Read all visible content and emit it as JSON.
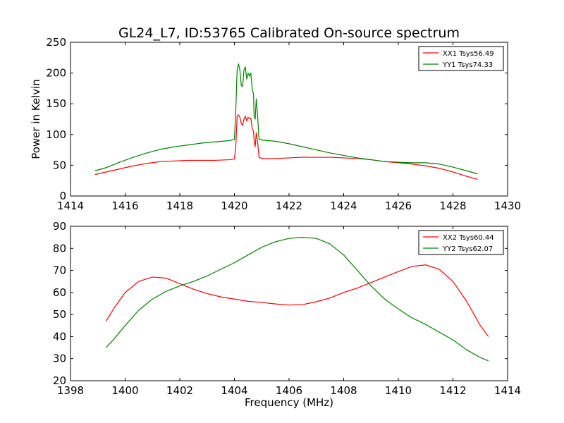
{
  "figure": {
    "title": "GL24_L7, ID:53765 Calibrated On-source spectrum"
  },
  "chart_data": [
    {
      "type": "line",
      "title": "GL24_L7, ID:53765 Calibrated On-source spectrum",
      "xlabel": "",
      "ylabel": "Power in Kelvin",
      "xlim": [
        1414,
        1430
      ],
      "ylim": [
        0,
        250
      ],
      "xticks": [
        1414,
        1416,
        1418,
        1420,
        1422,
        1424,
        1426,
        1428,
        1430
      ],
      "yticks": [
        0,
        50,
        100,
        150,
        200,
        250
      ],
      "grid": false,
      "legend_position": "top-right",
      "series": [
        {
          "name": "XX1 Tsys56.49",
          "color": "#ff0000",
          "points": [
            [
              1414.9,
              35
            ],
            [
              1415.3,
              39
            ],
            [
              1415.8,
              44
            ],
            [
              1416.3,
              49
            ],
            [
              1416.8,
              53
            ],
            [
              1417.3,
              56
            ],
            [
              1417.8,
              57
            ],
            [
              1418.3,
              58
            ],
            [
              1418.8,
              58
            ],
            [
              1419.3,
              58
            ],
            [
              1419.8,
              59
            ],
            [
              1420.0,
              60
            ],
            [
              1420.05,
              80
            ],
            [
              1420.1,
              130
            ],
            [
              1420.15,
              132
            ],
            [
              1420.2,
              128
            ],
            [
              1420.25,
              118
            ],
            [
              1420.3,
              115
            ],
            [
              1420.35,
              125
            ],
            [
              1420.4,
              130
            ],
            [
              1420.45,
              122
            ],
            [
              1420.5,
              128
            ],
            [
              1420.55,
              126
            ],
            [
              1420.6,
              127
            ],
            [
              1420.65,
              110
            ],
            [
              1420.7,
              105
            ],
            [
              1420.72,
              90
            ],
            [
              1420.76,
              80
            ],
            [
              1420.8,
              103
            ],
            [
              1420.85,
              88
            ],
            [
              1420.9,
              63
            ],
            [
              1421.0,
              61
            ],
            [
              1421.5,
              61
            ],
            [
              1422.0,
              62
            ],
            [
              1422.5,
              63
            ],
            [
              1423.0,
              63
            ],
            [
              1423.5,
              63
            ],
            [
              1424.0,
              62
            ],
            [
              1424.5,
              61
            ],
            [
              1425.0,
              59
            ],
            [
              1425.5,
              56
            ],
            [
              1426.0,
              54
            ],
            [
              1426.5,
              52
            ],
            [
              1427.0,
              49
            ],
            [
              1427.5,
              45
            ],
            [
              1428.0,
              39
            ],
            [
              1428.5,
              32
            ],
            [
              1428.9,
              27
            ]
          ]
        },
        {
          "name": "YY1 Tsys74.33",
          "color": "#008000",
          "points": [
            [
              1414.9,
              41
            ],
            [
              1415.3,
              46
            ],
            [
              1415.8,
              55
            ],
            [
              1416.3,
              63
            ],
            [
              1416.8,
              70
            ],
            [
              1417.3,
              76
            ],
            [
              1417.8,
              80
            ],
            [
              1418.3,
              83
            ],
            [
              1418.8,
              86
            ],
            [
              1419.3,
              88
            ],
            [
              1419.8,
              90
            ],
            [
              1420.0,
              92
            ],
            [
              1420.05,
              140
            ],
            [
              1420.1,
              205
            ],
            [
              1420.15,
              215
            ],
            [
              1420.2,
              205
            ],
            [
              1420.25,
              180
            ],
            [
              1420.3,
              178
            ],
            [
              1420.35,
              205
            ],
            [
              1420.4,
              210
            ],
            [
              1420.45,
              190
            ],
            [
              1420.5,
              200
            ],
            [
              1420.55,
              195
            ],
            [
              1420.6,
              200
            ],
            [
              1420.65,
              175
            ],
            [
              1420.7,
              165
            ],
            [
              1420.72,
              130
            ],
            [
              1420.76,
              125
            ],
            [
              1420.8,
              158
            ],
            [
              1420.85,
              130
            ],
            [
              1420.9,
              93
            ],
            [
              1421.0,
              91
            ],
            [
              1421.5,
              89
            ],
            [
              1422.0,
              85
            ],
            [
              1422.5,
              80
            ],
            [
              1423.0,
              75
            ],
            [
              1423.5,
              70
            ],
            [
              1424.0,
              66
            ],
            [
              1424.5,
              62
            ],
            [
              1425.0,
              59
            ],
            [
              1425.5,
              56
            ],
            [
              1426.0,
              55
            ],
            [
              1426.5,
              54
            ],
            [
              1427.0,
              54
            ],
            [
              1427.5,
              52
            ],
            [
              1428.0,
              47
            ],
            [
              1428.5,
              41
            ],
            [
              1428.9,
              36
            ]
          ]
        }
      ]
    },
    {
      "type": "line",
      "title": "",
      "xlabel": "Frequency (MHz)",
      "ylabel": "",
      "xlim": [
        1398,
        1414
      ],
      "ylim": [
        20,
        90
      ],
      "xticks": [
        1398,
        1400,
        1402,
        1404,
        1406,
        1408,
        1410,
        1412,
        1414
      ],
      "yticks": [
        20,
        30,
        40,
        50,
        60,
        70,
        80,
        90
      ],
      "grid": false,
      "legend_position": "top-right",
      "series": [
        {
          "name": "XX2 Tsys60.44",
          "color": "#ff0000",
          "points": [
            [
              1399.3,
              47
            ],
            [
              1399.6,
              53
            ],
            [
              1400.0,
              60
            ],
            [
              1400.5,
              65
            ],
            [
              1401.0,
              67
            ],
            [
              1401.5,
              66.5
            ],
            [
              1402.0,
              64
            ],
            [
              1402.5,
              61.5
            ],
            [
              1403.0,
              59.5
            ],
            [
              1403.5,
              58
            ],
            [
              1404.0,
              57
            ],
            [
              1404.5,
              56
            ],
            [
              1405.0,
              55.5
            ],
            [
              1405.5,
              54.8
            ],
            [
              1406.0,
              54.3
            ],
            [
              1406.5,
              54.5
            ],
            [
              1407.0,
              55.8
            ],
            [
              1407.5,
              57.5
            ],
            [
              1408.0,
              60
            ],
            [
              1408.5,
              62
            ],
            [
              1409.0,
              64.5
            ],
            [
              1409.5,
              67
            ],
            [
              1410.0,
              69.5
            ],
            [
              1410.5,
              71.8
            ],
            [
              1411.0,
              72.5
            ],
            [
              1411.5,
              70.5
            ],
            [
              1412.0,
              65
            ],
            [
              1412.5,
              56
            ],
            [
              1413.0,
              45
            ],
            [
              1413.3,
              40
            ]
          ]
        },
        {
          "name": "YY2 Tsys62.07",
          "color": "#008000",
          "points": [
            [
              1399.3,
              35
            ],
            [
              1399.6,
              39
            ],
            [
              1400.0,
              45
            ],
            [
              1400.5,
              52
            ],
            [
              1401.0,
              57
            ],
            [
              1401.5,
              60.5
            ],
            [
              1402.0,
              63
            ],
            [
              1402.5,
              65
            ],
            [
              1403.0,
              67.5
            ],
            [
              1403.5,
              70.5
            ],
            [
              1404.0,
              73.5
            ],
            [
              1404.5,
              77
            ],
            [
              1405.0,
              80.5
            ],
            [
              1405.5,
              83
            ],
            [
              1406.0,
              84.5
            ],
            [
              1406.5,
              85
            ],
            [
              1407.0,
              84.5
            ],
            [
              1407.5,
              82
            ],
            [
              1408.0,
              77
            ],
            [
              1408.5,
              70
            ],
            [
              1409.0,
              63
            ],
            [
              1409.5,
              57
            ],
            [
              1410.0,
              52.5
            ],
            [
              1410.5,
              48.5
            ],
            [
              1411.0,
              45.5
            ],
            [
              1411.5,
              42
            ],
            [
              1412.0,
              38.5
            ],
            [
              1412.5,
              34
            ],
            [
              1413.0,
              30.5
            ],
            [
              1413.3,
              29
            ]
          ]
        }
      ]
    }
  ]
}
